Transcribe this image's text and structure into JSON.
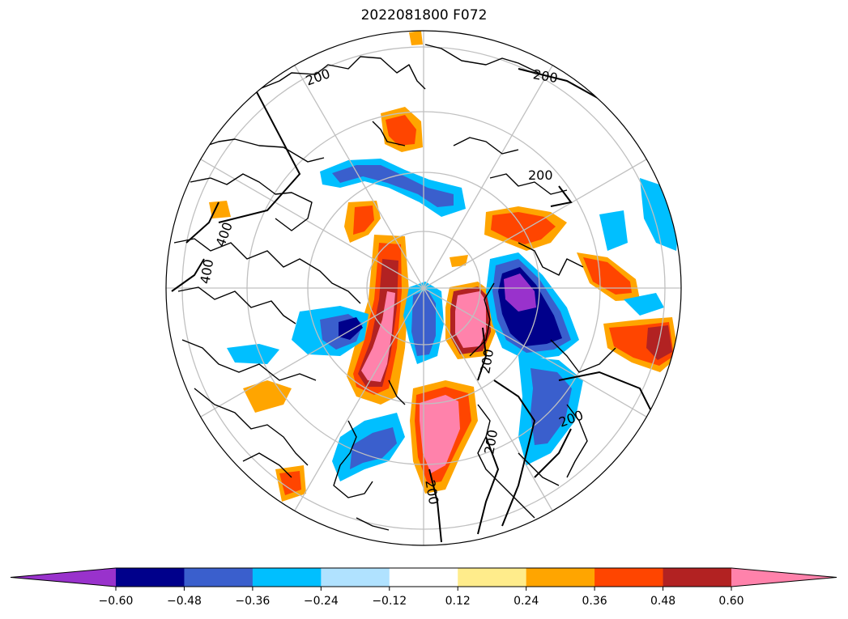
{
  "title": "2022081800 F072",
  "contour_labels": [
    "200",
    "200",
    "200",
    "400",
    "400",
    "200",
    "200",
    "200",
    "200"
  ],
  "colorbar": {
    "ticks": [
      "−0.60",
      "−0.48",
      "−0.36",
      "−0.24",
      "−0.12",
      "0.12",
      "0.24",
      "0.36",
      "0.48",
      "0.60"
    ],
    "colors": [
      "#9932cc",
      "#00008b",
      "#3a5fcd",
      "#00bfff",
      "#b0e2ff",
      "#ffffff",
      "#ffec8b",
      "#ffa500",
      "#ff4500",
      "#b22222",
      "#ff82ab"
    ],
    "extend": "both"
  },
  "map": {
    "projection": "north polar stereographic",
    "gridlines": true,
    "coastlines": true
  }
}
